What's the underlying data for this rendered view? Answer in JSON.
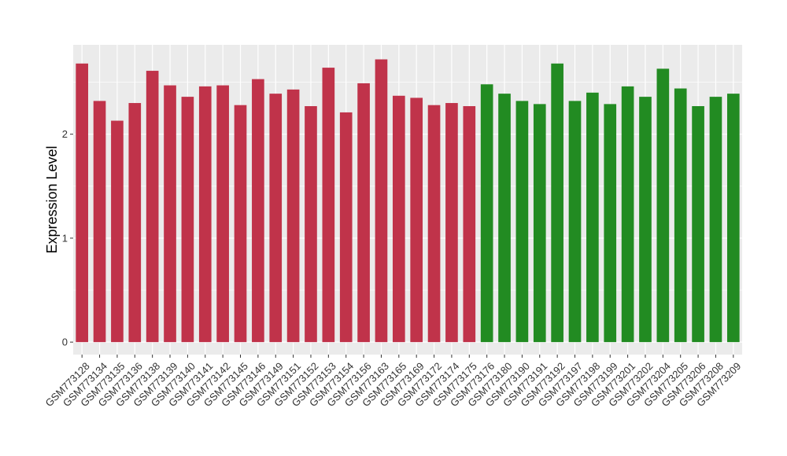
{
  "chart_data": {
    "type": "bar",
    "ylabel": "Expression Level",
    "xlabel": "",
    "ylim": [
      -0.12,
      2.86
    ],
    "yticks": [
      0,
      1,
      2
    ],
    "grid": true,
    "background": "#EBEBEB",
    "gridline_color": "#FFFFFF",
    "series_colors": {
      "group1": "#C0334A",
      "group2": "#228B22"
    },
    "categories": [
      "GSM773128",
      "GSM773134",
      "GSM773135",
      "GSM773136",
      "GSM773138",
      "GSM773139",
      "GSM773140",
      "GSM773141",
      "GSM773142",
      "GSM773145",
      "GSM773146",
      "GSM773149",
      "GSM773151",
      "GSM773152",
      "GSM773153",
      "GSM773154",
      "GSM773156",
      "GSM773163",
      "GSM773165",
      "GSM773169",
      "GSM773172",
      "GSM773174",
      "GSM773175",
      "GSM773176",
      "GSM773180",
      "GSM773190",
      "GSM773191",
      "GSM773192",
      "GSM773197",
      "GSM773198",
      "GSM773199",
      "GSM773201",
      "GSM773202",
      "GSM773204",
      "GSM773205",
      "GSM773206",
      "GSM773208",
      "GSM773209"
    ],
    "values": [
      2.68,
      2.32,
      2.13,
      2.3,
      2.61,
      2.47,
      2.36,
      2.46,
      2.47,
      2.28,
      2.53,
      2.39,
      2.43,
      2.27,
      2.64,
      2.21,
      2.49,
      2.72,
      2.37,
      2.35,
      2.28,
      2.3,
      2.27,
      2.48,
      2.39,
      2.32,
      2.29,
      2.68,
      2.32,
      2.4,
      2.29,
      2.46,
      2.36,
      2.63,
      2.44,
      2.27,
      2.36,
      2.39
    ],
    "groups": [
      "group1",
      "group1",
      "group1",
      "group1",
      "group1",
      "group1",
      "group1",
      "group1",
      "group1",
      "group1",
      "group1",
      "group1",
      "group1",
      "group1",
      "group1",
      "group1",
      "group1",
      "group1",
      "group1",
      "group1",
      "group1",
      "group1",
      "group1",
      "group2",
      "group2",
      "group2",
      "group2",
      "group2",
      "group2",
      "group2",
      "group2",
      "group2",
      "group2",
      "group2",
      "group2",
      "group2",
      "group2",
      "group2"
    ]
  }
}
